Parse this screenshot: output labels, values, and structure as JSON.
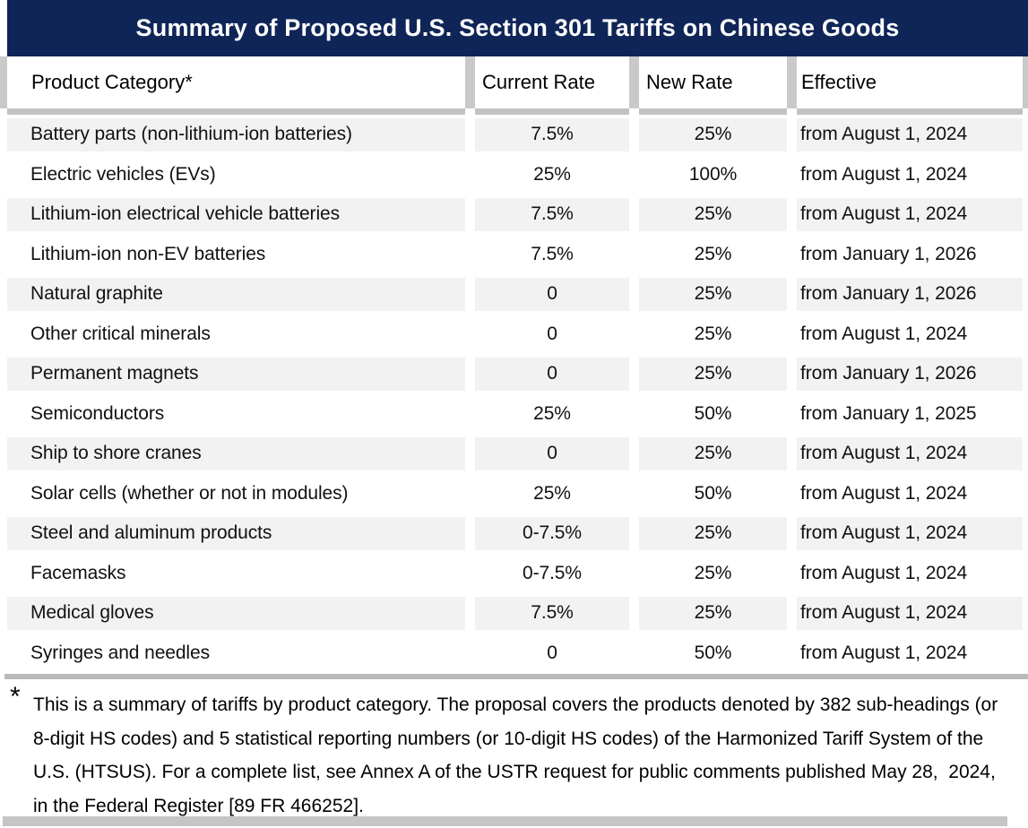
{
  "title": "Summary of Proposed U.S. Section 301 Tariffs on Chinese Goods",
  "table": {
    "columns": [
      "Product Category*",
      "Current Rate",
      "New Rate",
      "Effective"
    ],
    "rows": [
      [
        "Battery parts (non-lithium-ion batteries)",
        "7.5%",
        "25%",
        "from August 1, 2024"
      ],
      [
        "Electric vehicles (EVs)",
        "25%",
        "100%",
        "from August 1, 2024"
      ],
      [
        "Lithium-ion electrical vehicle batteries",
        "7.5%",
        "25%",
        "from August 1, 2024"
      ],
      [
        "Lithium-ion non-EV batteries",
        "7.5%",
        "25%",
        "from January 1, 2026"
      ],
      [
        "Natural graphite",
        "0",
        "25%",
        "from January 1, 2026"
      ],
      [
        "Other critical minerals",
        "0",
        "25%",
        "from August 1, 2024"
      ],
      [
        "Permanent magnets",
        "0",
        "25%",
        "from January 1, 2026"
      ],
      [
        "Semiconductors",
        "25%",
        "50%",
        "from January 1, 2025"
      ],
      [
        "Ship to shore cranes",
        "0",
        "25%",
        "from August 1, 2024"
      ],
      [
        "Solar cells (whether or not in modules)",
        "25%",
        "50%",
        "from August 1, 2024"
      ],
      [
        "Steel and aluminum products",
        "0-7.5%",
        "25%",
        "from August 1, 2024"
      ],
      [
        "Facemasks",
        "0-7.5%",
        "25%",
        "from August 1, 2024"
      ],
      [
        "Medical gloves",
        "7.5%",
        "25%",
        "from August 1, 2024"
      ],
      [
        "Syringes and needles",
        "0",
        "50%",
        "from August 1, 2024"
      ]
    ]
  },
  "footnote": {
    "marker": "*",
    "text": "This is a summary of tariffs by product category. The proposal covers the products denoted by 382 sub-headings (or 8-digit HS codes) and 5 statistical reporting numbers (or 10-digit HS codes) of the Harmonized Tariff System of the U.S. (HTSUS). For a complete list, see Annex A of the USTR request for public comments published May 28,  2024, in the Federal Register [89 FR 466252]."
  },
  "colors": {
    "title_band": "#0f2557",
    "row_shade": "#f2f2f2",
    "separator_gray": "#c9c9c9",
    "divider_gray": "#b9b9b9"
  }
}
